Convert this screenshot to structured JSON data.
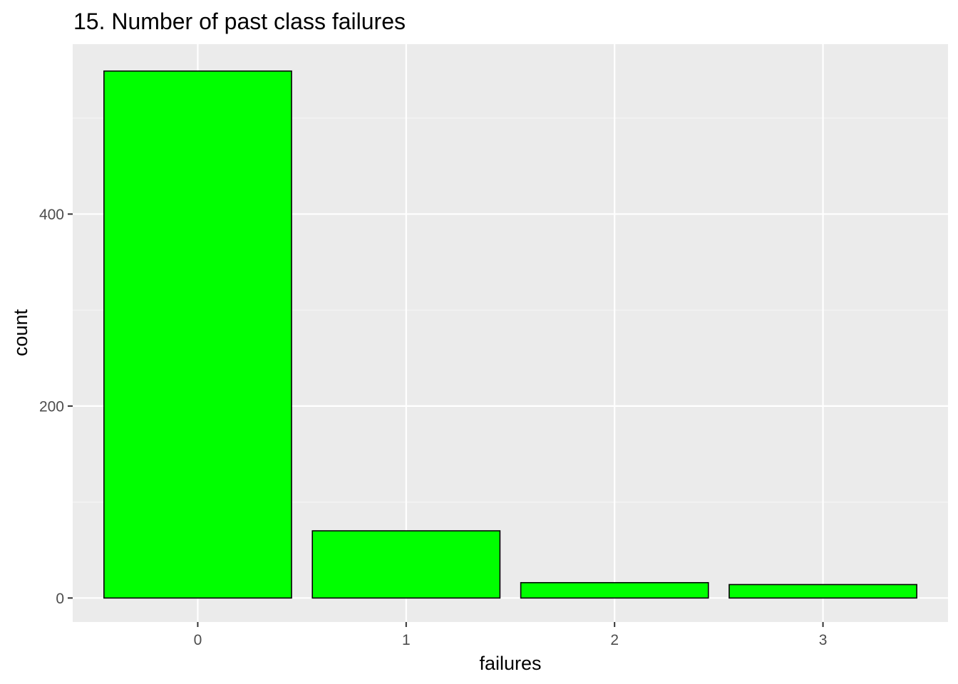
{
  "chart_data": {
    "type": "bar",
    "title": "15. Number of past class failures",
    "xlabel": "failures",
    "ylabel": "count",
    "categories": [
      "0",
      "1",
      "2",
      "3"
    ],
    "values": [
      549,
      70,
      16,
      14
    ],
    "ylim": [
      -25,
      577
    ],
    "yticks": [
      0,
      200,
      400
    ],
    "grid": true,
    "legend": "none",
    "colors": {
      "bar_fill": "#00ff00",
      "bar_stroke": "#000000",
      "panel_background": "#ebebeb",
      "grid_major": "#ffffff",
      "grid_minor": "#f5f5f5",
      "tick_mark": "#333333"
    }
  }
}
